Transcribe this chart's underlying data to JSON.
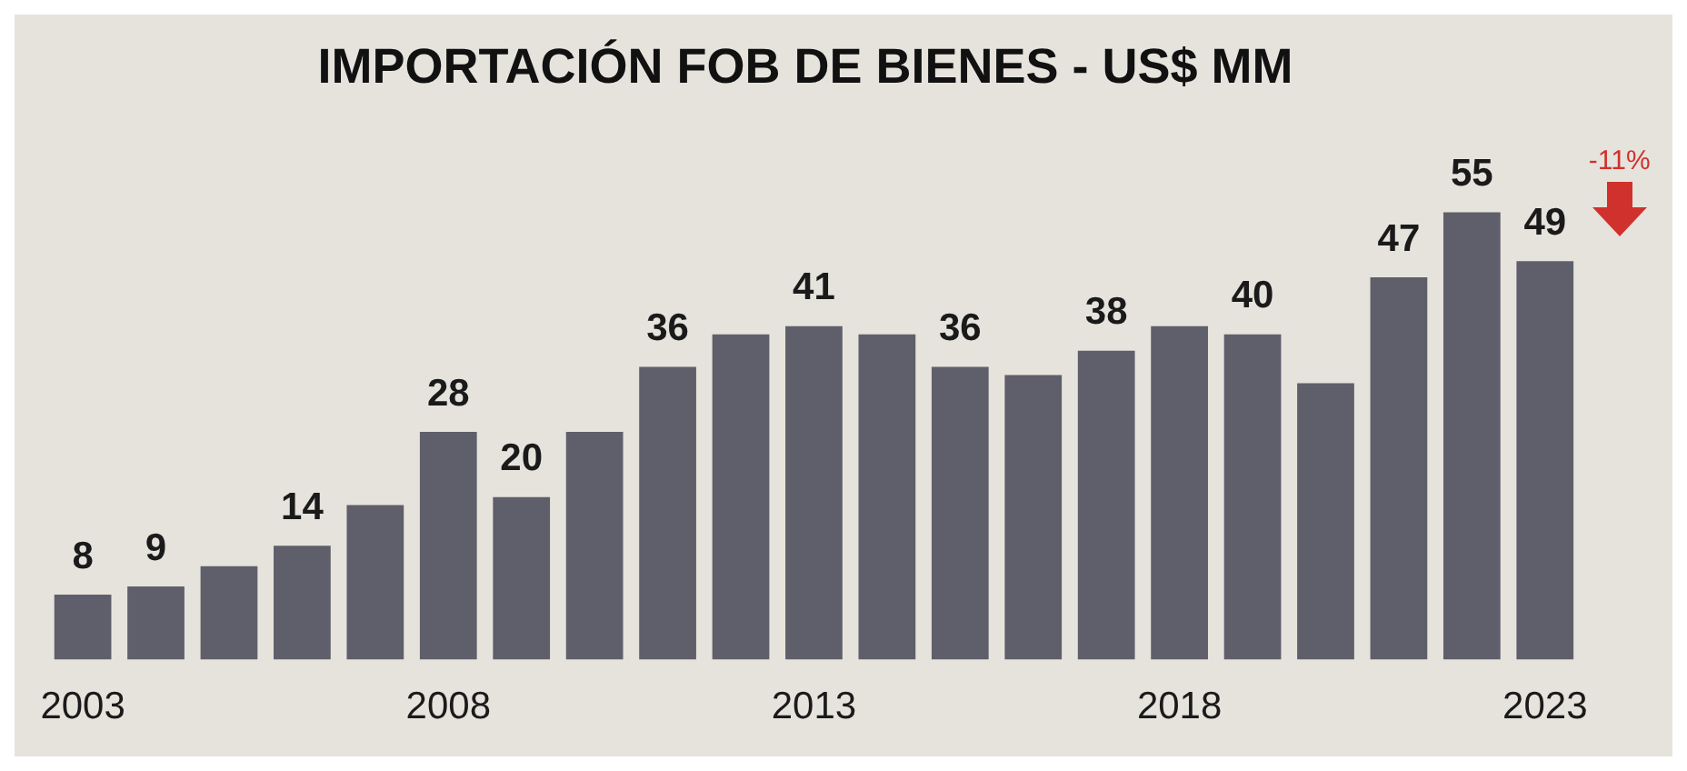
{
  "chart_data": {
    "type": "bar",
    "title": "IMPORTACIÓN FOB DE BIENES - US$ MM",
    "categories": [
      "2003",
      null,
      null,
      null,
      null,
      "2008",
      null,
      null,
      null,
      null,
      "2013",
      null,
      null,
      null,
      null,
      "2018",
      null,
      null,
      null,
      null,
      "2023"
    ],
    "values": [
      8,
      9,
      11.5,
      14,
      19,
      28,
      20,
      28,
      36,
      40,
      41,
      40,
      36,
      35,
      38,
      41,
      40,
      34,
      47,
      55,
      49
    ],
    "value_labels": [
      "8",
      "9",
      null,
      "14",
      null,
      "28",
      "20",
      null,
      "36",
      null,
      "41",
      null,
      "36",
      null,
      "38",
      null,
      "40",
      null,
      "47",
      "55",
      "49"
    ],
    "color": "#5f5f6b",
    "annotations": [
      "-11%"
    ],
    "grid": false,
    "legend": false,
    "tick_labels": "x"
  }
}
